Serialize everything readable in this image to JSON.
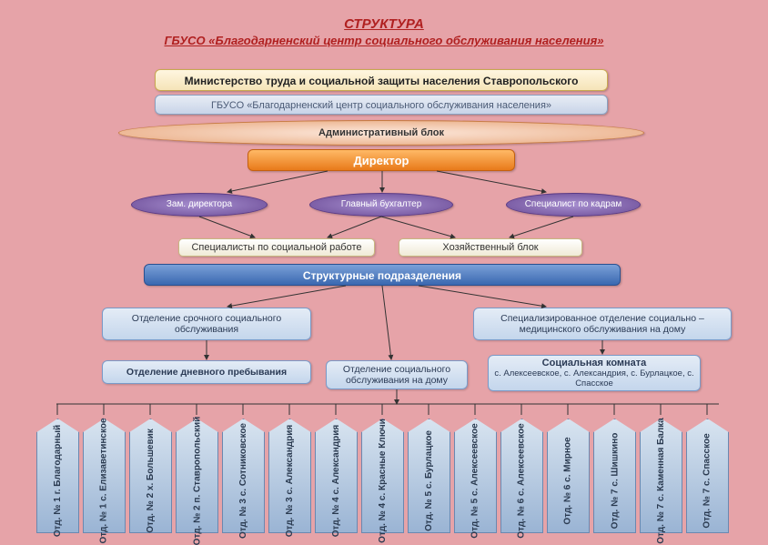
{
  "title": {
    "line1": "СТРУКТУРА",
    "line2": "ГБУСО «Благодарненский центр социального обслуживания населения»"
  },
  "colors": {
    "background": "#e6a3a8",
    "title_color": "#b02020",
    "blue_box_bg": "#c4d6ec",
    "orange": "#e87a1a",
    "purple": "#6a4a95",
    "struct_blue": "#3a68b0"
  },
  "diagram": {
    "type": "tree",
    "ministry": "Министерство труда и социальной защиты населения Ставропольского",
    "gbuso": "ГБУСО «Благодарненский центр социального обслуживания населения»",
    "admin_block": "Административный блок",
    "director": "Директор",
    "subs": {
      "zam": "Зам. директора",
      "buh": "Главный бухгалтер",
      "kadry": "Специалист по кадрам"
    },
    "specialists": "Специалисты по социальной работе",
    "hoz": "Хозяйственный блок",
    "struct_pod": "Структурные подразделения",
    "departments": {
      "urgent": "Отделение срочного социального обслуживания",
      "medical": "Специализированное отделение социально – медицинского обслуживания на дому",
      "day": "Отделение дневного пребывания",
      "home": "Отделение социального обслуживания на дому",
      "social_room_head": "Социальная комната",
      "social_room_sub": "с. Алексеевское, с. Александрия, с. Бурлацкое, с. Спасское"
    },
    "branches": [
      "Отд. № 1 г. Благодарный",
      "Отд. № 1 с. Елизаветинское",
      "Отд. № 2 х. Большевик",
      "Отд. № 2 п. Ставропольский",
      "Отд. № 3 с. Сотниковское",
      "Отд. № 3 с. Александрия",
      "Отд. № 4 с. Александрия",
      "Отд. № 4 с. Красные Ключи",
      "Отд. № 5 с. Бурлацкое",
      "Отд. № 5 с. Алексеевское",
      "Отд. № 6 с. Алексеевское",
      "Отд. № 6 с. Мирное",
      "Отд. № 7 с. Шишкино",
      "Отд. № 7 с. Каменная Балка",
      "Отд. № 7 с. Спасское"
    ]
  }
}
